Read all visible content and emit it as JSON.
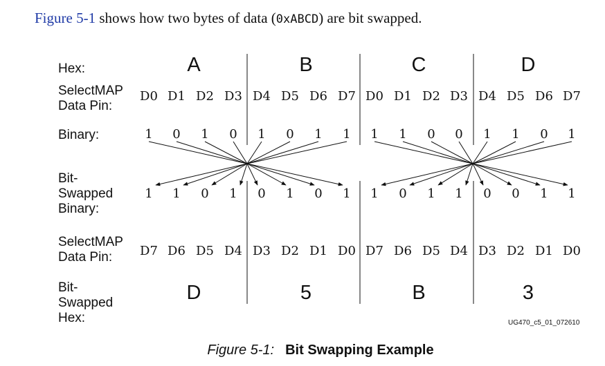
{
  "intro": {
    "link": "Figure 5-1",
    "text1": " shows how two bytes of data (",
    "code": "0xABCD",
    "text2": ") are bit swapped."
  },
  "labels": {
    "hex": "Hex:",
    "pin_top": "SelectMAP\nData Pin:",
    "binary": "Binary:",
    "swapped_binary": "Bit-\nSwapped\nBinary:",
    "pin_bottom": "SelectMAP\nData Pin:",
    "swapped_hex": "Bit-\nSwapped\nHex:"
  },
  "hex_top": [
    "A",
    "B",
    "C",
    "D"
  ],
  "pins_top": [
    "D0",
    "D1",
    "D2",
    "D3",
    "D4",
    "D5",
    "D6",
    "D7",
    "D0",
    "D1",
    "D2",
    "D3",
    "D4",
    "D5",
    "D6",
    "D7"
  ],
  "binary": [
    "1",
    "0",
    "1",
    "0",
    "1",
    "0",
    "1",
    "1",
    "1",
    "1",
    "0",
    "0",
    "1",
    "1",
    "0",
    "1"
  ],
  "swapped_binary": [
    "1",
    "1",
    "0",
    "1",
    "0",
    "1",
    "0",
    "1",
    "1",
    "0",
    "1",
    "1",
    "0",
    "0",
    "1",
    "1"
  ],
  "pins_bottom": [
    "D7",
    "D6",
    "D5",
    "D4",
    "D3",
    "D2",
    "D1",
    "D0",
    "D7",
    "D6",
    "D5",
    "D4",
    "D3",
    "D2",
    "D1",
    "D0"
  ],
  "hex_bottom": [
    "D",
    "5",
    "B",
    "3"
  ],
  "watermark": "UG470_c5_01_072610",
  "caption": {
    "number": "Figure 5-1:",
    "title": "Bit Swapping Example"
  }
}
